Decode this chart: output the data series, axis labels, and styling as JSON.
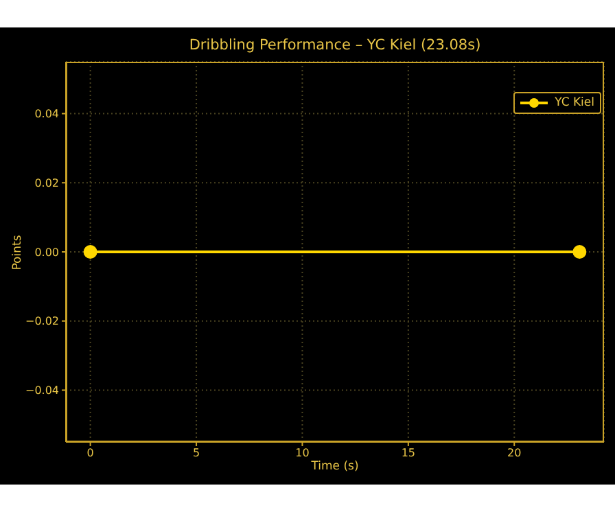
{
  "chart_data": {
    "type": "line",
    "title": "Dribbling Performance – YC Kiel (23.08s)",
    "xlabel": "Time (s)",
    "ylabel": "Points",
    "x": [
      0,
      23.08
    ],
    "series": [
      {
        "name": "YC Kiel",
        "color": "#ffd700",
        "values": [
          0,
          0
        ]
      }
    ],
    "xlim": [
      -1.154,
      24.234
    ],
    "xticks": [
      0,
      5,
      10,
      15,
      20
    ],
    "ylim": [
      -0.055,
      0.055
    ],
    "yticks": [
      {
        "value": -0.04,
        "label": "−0.04"
      },
      {
        "value": -0.02,
        "label": "−0.02"
      },
      {
        "value": 0,
        "label": "0.00"
      },
      {
        "value": 0.02,
        "label": "0.02"
      },
      {
        "value": 0.04,
        "label": "0.04"
      }
    ],
    "grid": true,
    "legend": "top right",
    "marker": "circle",
    "line_style": "solid"
  }
}
